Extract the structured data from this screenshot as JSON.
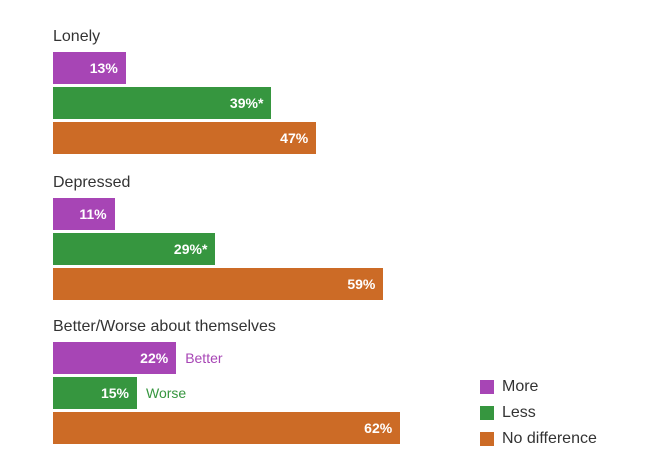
{
  "chart_data": {
    "type": "bar",
    "orientation": "horizontal",
    "xlim": [
      0,
      100
    ],
    "groups": [
      {
        "label": "Lonely",
        "bars": [
          {
            "series": "More",
            "value": 13,
            "label": "13%",
            "annotation": ""
          },
          {
            "series": "Less",
            "value": 39,
            "label": "39%*",
            "annotation": ""
          },
          {
            "series": "No difference",
            "value": 47,
            "label": "47%",
            "annotation": ""
          }
        ]
      },
      {
        "label": "Depressed",
        "bars": [
          {
            "series": "More",
            "value": 11,
            "label": "11%",
            "annotation": ""
          },
          {
            "series": "Less",
            "value": 29,
            "label": "29%*",
            "annotation": ""
          },
          {
            "series": "No difference",
            "value": 59,
            "label": "59%",
            "annotation": ""
          }
        ]
      },
      {
        "label": "Better/Worse about themselves",
        "bars": [
          {
            "series": "More",
            "value": 22,
            "label": "22%",
            "annotation": "Better"
          },
          {
            "series": "Less",
            "value": 15,
            "label": "15%",
            "annotation": "Worse"
          },
          {
            "series": "No difference",
            "value": 62,
            "label": "62%",
            "annotation": ""
          }
        ]
      }
    ],
    "legend": {
      "position": "bottom-right",
      "items": [
        {
          "name": "More",
          "color": "#a745b5"
        },
        {
          "name": "Less",
          "color": "#36963f"
        },
        {
          "name": "No difference",
          "color": "#cc6b26"
        }
      ]
    }
  }
}
